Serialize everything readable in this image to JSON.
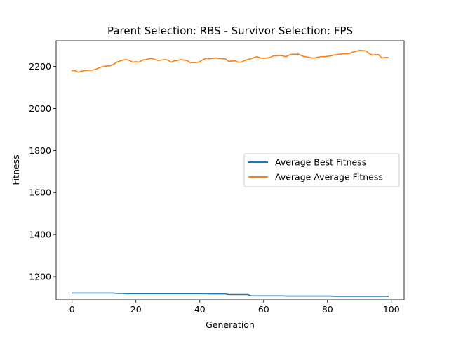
{
  "chart_data": {
    "type": "line",
    "title": "Parent Selection: RBS - Survivor Selection: FPS",
    "xlabel": "Generation",
    "ylabel": "Fitness",
    "xlim": [
      -5,
      104
    ],
    "ylim": [
      1090,
      2322
    ],
    "xticks": [
      "0",
      "20",
      "40",
      "60",
      "80",
      "100"
    ],
    "yticks": [
      "1200",
      "1400",
      "1600",
      "1800",
      "2000",
      "2200"
    ],
    "grid": false,
    "legend_position": "center-right",
    "x": [
      0,
      1,
      2,
      3,
      4,
      5,
      6,
      7,
      8,
      9,
      10,
      11,
      12,
      13,
      14,
      15,
      16,
      17,
      18,
      19,
      20,
      21,
      22,
      23,
      24,
      25,
      26,
      27,
      28,
      29,
      30,
      31,
      32,
      33,
      34,
      35,
      36,
      37,
      38,
      39,
      40,
      41,
      42,
      43,
      44,
      45,
      46,
      47,
      48,
      49,
      50,
      51,
      52,
      53,
      54,
      55,
      56,
      57,
      58,
      59,
      60,
      61,
      62,
      63,
      64,
      65,
      66,
      67,
      68,
      69,
      70,
      71,
      72,
      73,
      74,
      75,
      76,
      77,
      78,
      79,
      80,
      81,
      82,
      83,
      84,
      85,
      86,
      87,
      88,
      89,
      90,
      91,
      92,
      93,
      94,
      95,
      96,
      97,
      98,
      99
    ],
    "series": [
      {
        "name": "Average Best Fitness",
        "color": "#1f77b4",
        "values": [
          1122,
          1122,
          1122,
          1122,
          1122,
          1122,
          1122,
          1122,
          1122,
          1122,
          1122,
          1122,
          1122,
          1122,
          1120,
          1120,
          1120,
          1119,
          1119,
          1119,
          1119,
          1119,
          1119,
          1119,
          1119,
          1119,
          1119,
          1119,
          1119,
          1119,
          1119,
          1119,
          1119,
          1119,
          1119,
          1119,
          1119,
          1119,
          1119,
          1119,
          1119,
          1119,
          1119,
          1118,
          1118,
          1118,
          1118,
          1118,
          1118,
          1115,
          1115,
          1115,
          1115,
          1115,
          1115,
          1115,
          1110,
          1109,
          1109,
          1109,
          1109,
          1109,
          1109,
          1109,
          1109,
          1109,
          1109,
          1108,
          1108,
          1108,
          1108,
          1108,
          1108,
          1108,
          1108,
          1108,
          1108,
          1108,
          1108,
          1108,
          1108,
          1108,
          1107,
          1107,
          1107,
          1107,
          1107,
          1107,
          1107,
          1107,
          1107,
          1107,
          1107,
          1107,
          1107,
          1107,
          1107,
          1107,
          1107,
          1107
        ]
      },
      {
        "name": "Average Average Fitness",
        "color": "#ff7f0e",
        "values": [
          2180,
          2180,
          2172,
          2178,
          2180,
          2182,
          2182,
          2184,
          2190,
          2196,
          2200,
          2202,
          2203,
          2210,
          2220,
          2226,
          2230,
          2232,
          2228,
          2220,
          2222,
          2220,
          2230,
          2232,
          2236,
          2238,
          2232,
          2228,
          2230,
          2232,
          2230,
          2220,
          2226,
          2228,
          2232,
          2230,
          2228,
          2218,
          2218,
          2218,
          2222,
          2232,
          2238,
          2236,
          2238,
          2240,
          2238,
          2236,
          2236,
          2224,
          2225,
          2226,
          2220,
          2220,
          2228,
          2232,
          2236,
          2242,
          2246,
          2240,
          2238,
          2240,
          2242,
          2250,
          2250,
          2252,
          2250,
          2246,
          2254,
          2258,
          2258,
          2258,
          2250,
          2246,
          2244,
          2240,
          2240,
          2244,
          2246,
          2246,
          2248,
          2250,
          2254,
          2256,
          2258,
          2260,
          2260,
          2262,
          2268,
          2272,
          2276,
          2275,
          2274,
          2262,
          2254,
          2256,
          2256,
          2240,
          2242,
          2242
        ]
      }
    ]
  }
}
